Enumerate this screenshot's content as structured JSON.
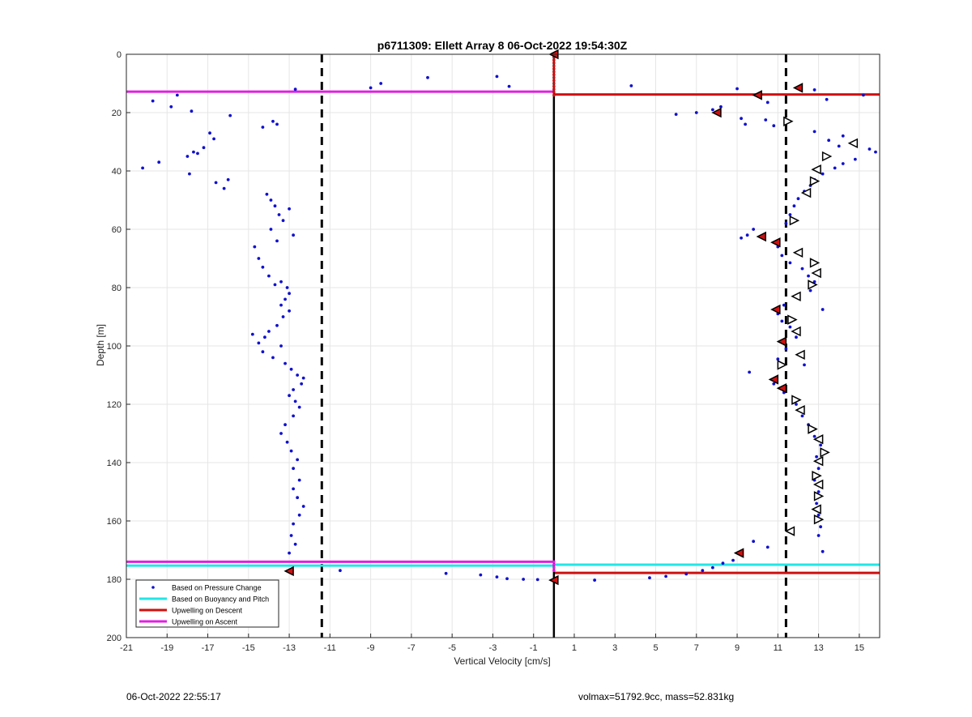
{
  "footer": {
    "timestamp": "06-Oct-2022 22:55:17",
    "summary": "volmax=51792.9cc, mass=52.831kg"
  },
  "chart_data": {
    "type": "scatter",
    "title": "p6711309: Ellett Array 8 06-Oct-2022 19:54:30Z",
    "xlabel": "Vertical Velocity [cm/s]",
    "ylabel": "Depth [m]",
    "xlim": [
      -21,
      16
    ],
    "ylim": [
      0,
      200
    ],
    "y_reversed": true,
    "grid": true,
    "legend_position": "bottom-left",
    "x_ticks": [
      -21,
      -19,
      -17,
      -15,
      -13,
      -11,
      -9,
      -7,
      -5,
      -3,
      -1,
      1,
      3,
      5,
      7,
      9,
      11,
      13,
      15
    ],
    "y_ticks": [
      0,
      20,
      40,
      60,
      80,
      100,
      120,
      140,
      160,
      180,
      200
    ],
    "legend": [
      {
        "label": "Based on Pressure Change",
        "color": "#1010d0",
        "kind": "marker"
      },
      {
        "label": "Based on Buoyancy and Pitch",
        "color": "#22e6e6",
        "kind": "line"
      },
      {
        "label": "Upwelling on Descent",
        "color": "#d01010",
        "kind": "line"
      },
      {
        "label": "Upwelling on Ascent",
        "color": "#e020e0",
        "kind": "line"
      }
    ],
    "colors": {
      "pressure": "#1010d0",
      "buoyancy": "#22e6e6",
      "descent": "#d01010",
      "ascent": "#e020e0",
      "red_marker": "#d01010"
    },
    "dashed_vlines": [
      -11.4,
      11.4
    ],
    "zero_line": 0,
    "upwelling_descent": [
      {
        "x": [
          0,
          16
        ],
        "y": 13.8
      },
      {
        "x": [
          0,
          16
        ],
        "y": 177.8
      }
    ],
    "upwelling_ascent": [
      {
        "x": [
          -21,
          0
        ],
        "y": 12.8
      },
      {
        "x": [
          -21,
          0
        ],
        "y": 174.0
      }
    ],
    "buoyancy_lines": [
      {
        "x": [
          -21,
          0
        ],
        "y": 175.3
      },
      {
        "x": [
          0,
          16
        ],
        "y": 175.0
      }
    ],
    "pressure_points": [
      [
        -20.2,
        39
      ],
      [
        -19.7,
        16
      ],
      [
        -19.4,
        37
      ],
      [
        -18.8,
        18
      ],
      [
        -18.5,
        14
      ],
      [
        -18.0,
        35
      ],
      [
        -17.8,
        19.5
      ],
      [
        -17.9,
        41
      ],
      [
        -17.7,
        33.5
      ],
      [
        -17.5,
        34
      ],
      [
        -17.2,
        32
      ],
      [
        -16.9,
        27
      ],
      [
        -16.7,
        29
      ],
      [
        -16.6,
        44
      ],
      [
        -16.2,
        46
      ],
      [
        -16.0,
        43
      ],
      [
        -15.9,
        21
      ],
      [
        -14.3,
        25
      ],
      [
        -13.8,
        23
      ],
      [
        -13.6,
        24
      ],
      [
        -14.1,
        48
      ],
      [
        -13.9,
        50
      ],
      [
        -13.7,
        52
      ],
      [
        -13.5,
        55
      ],
      [
        -13.3,
        57
      ],
      [
        -13.0,
        53
      ],
      [
        -12.8,
        62
      ],
      [
        -13.9,
        60
      ],
      [
        -13.6,
        64
      ],
      [
        -14.7,
        66
      ],
      [
        -14.5,
        70
      ],
      [
        -14.3,
        73
      ],
      [
        -14.0,
        76
      ],
      [
        -13.7,
        79
      ],
      [
        -13.4,
        78
      ],
      [
        -13.1,
        80
      ],
      [
        -13.0,
        82
      ],
      [
        -13.2,
        84
      ],
      [
        -13.4,
        86
      ],
      [
        -13.0,
        88
      ],
      [
        -13.3,
        90
      ],
      [
        -13.6,
        93
      ],
      [
        -14.0,
        95
      ],
      [
        -14.2,
        97
      ],
      [
        -14.5,
        99
      ],
      [
        -14.8,
        96
      ],
      [
        -14.3,
        102
      ],
      [
        -13.8,
        104
      ],
      [
        -13.4,
        100
      ],
      [
        -13.2,
        106
      ],
      [
        -12.9,
        108
      ],
      [
        -12.6,
        110
      ],
      [
        -12.3,
        111
      ],
      [
        -12.4,
        113
      ],
      [
        -12.8,
        115
      ],
      [
        -13.0,
        117
      ],
      [
        -12.7,
        119
      ],
      [
        -12.5,
        121
      ],
      [
        -12.8,
        124
      ],
      [
        -13.2,
        127
      ],
      [
        -13.4,
        130
      ],
      [
        -13.1,
        133
      ],
      [
        -12.9,
        136
      ],
      [
        -12.6,
        139
      ],
      [
        -12.8,
        142
      ],
      [
        -12.5,
        146
      ],
      [
        -12.8,
        149
      ],
      [
        -12.6,
        152
      ],
      [
        -12.3,
        155
      ],
      [
        -12.5,
        158
      ],
      [
        -12.8,
        161
      ],
      [
        -12.9,
        165
      ],
      [
        -12.7,
        168
      ],
      [
        -13.0,
        171
      ],
      [
        -12.7,
        12.0
      ],
      [
        -8.5,
        10.0
      ],
      [
        -9.0,
        11.5
      ],
      [
        -6.2,
        8.0
      ],
      [
        -2.8,
        7.6
      ],
      [
        -2.2,
        11.0
      ],
      [
        3.8,
        10.8
      ],
      [
        9.0,
        11.8
      ],
      [
        9.9,
        14.0
      ],
      [
        10.5,
        16.5
      ],
      [
        12.8,
        12.2
      ],
      [
        13.4,
        15.5
      ],
      [
        15.2,
        14.0
      ],
      [
        -10.5,
        177.0
      ],
      [
        -5.3,
        178
      ],
      [
        -3.6,
        178.5
      ],
      [
        -2.8,
        179.2
      ],
      [
        -2.3,
        179.8
      ],
      [
        -1.5,
        180.0
      ],
      [
        -0.8,
        180.1
      ],
      [
        2.0,
        180.3
      ],
      [
        4.7,
        179.5
      ],
      [
        5.5,
        179.0
      ],
      [
        6.5,
        178.2
      ],
      [
        7.3,
        177.0
      ],
      [
        7.8,
        176.0
      ],
      [
        8.3,
        174.5
      ],
      [
        8.8,
        173.5
      ],
      [
        9.8,
        167.0
      ],
      [
        10.5,
        169.0
      ],
      [
        6.0,
        20.6
      ],
      [
        7.0,
        20.0
      ],
      [
        7.8,
        19.0
      ],
      [
        8.2,
        18.0
      ],
      [
        9.2,
        22.0
      ],
      [
        9.4,
        24.0
      ],
      [
        10.4,
        22.5
      ],
      [
        10.8,
        24.5
      ],
      [
        12.8,
        26.5
      ],
      [
        13.5,
        29.5
      ],
      [
        14.2,
        28.0
      ],
      [
        14.0,
        31.5
      ],
      [
        15.5,
        32.5
      ],
      [
        15.8,
        33.5
      ],
      [
        14.8,
        36.0
      ],
      [
        14.2,
        37.5
      ],
      [
        13.8,
        39.0
      ],
      [
        13.2,
        41.0
      ],
      [
        12.8,
        43.0
      ],
      [
        12.6,
        45.0
      ],
      [
        12.3,
        47.0
      ],
      [
        12.0,
        49.5
      ],
      [
        11.8,
        52.0
      ],
      [
        11.6,
        55.0
      ],
      [
        11.4,
        58.0
      ],
      [
        9.8,
        60.0
      ],
      [
        9.5,
        62.0
      ],
      [
        9.2,
        63.0
      ],
      [
        11.0,
        66.0
      ],
      [
        11.2,
        69.0
      ],
      [
        11.6,
        71.5
      ],
      [
        12.2,
        73.5
      ],
      [
        12.5,
        76.0
      ],
      [
        12.8,
        78.0
      ],
      [
        12.6,
        81.0
      ],
      [
        13.2,
        87.5
      ],
      [
        11.3,
        86.0
      ],
      [
        11.0,
        89.0
      ],
      [
        11.2,
        91.5
      ],
      [
        11.6,
        93.5
      ],
      [
        11.9,
        97.0
      ],
      [
        11.4,
        101.0
      ],
      [
        11.0,
        104.5
      ],
      [
        12.3,
        106.5
      ],
      [
        9.6,
        109.0
      ],
      [
        10.8,
        113.0
      ],
      [
        11.3,
        116.0
      ],
      [
        11.9,
        120.0
      ],
      [
        12.2,
        124.0
      ],
      [
        12.5,
        127.0
      ],
      [
        12.8,
        131.0
      ],
      [
        13.1,
        134.0
      ],
      [
        12.9,
        138.0
      ],
      [
        13.0,
        142.0
      ],
      [
        12.8,
        146.0
      ],
      [
        13.0,
        150.0
      ],
      [
        12.9,
        154.0
      ],
      [
        13.0,
        158.0
      ],
      [
        13.1,
        162.0
      ],
      [
        13.0,
        165.0
      ],
      [
        13.2,
        170.5
      ]
    ],
    "descent_markers": [
      [
        0,
        0
      ],
      [
        12.0,
        11.5
      ],
      [
        10.0,
        14.0
      ],
      [
        8.0,
        20.0
      ],
      [
        10.2,
        62.5
      ],
      [
        10.9,
        64.5
      ],
      [
        10.9,
        87.5
      ],
      [
        11.2,
        98.5
      ],
      [
        10.8,
        111.5
      ],
      [
        11.2,
        114.5
      ],
      [
        9.1,
        171.0
      ],
      [
        -13.0,
        177.2
      ],
      [
        0,
        180.3
      ]
    ],
    "ascent_markers": [
      [
        11.5,
        23.0
      ],
      [
        14.7,
        30.5
      ],
      [
        13.4,
        35.0
      ],
      [
        12.9,
        39.5
      ],
      [
        12.8,
        43.5
      ],
      [
        12.4,
        47.5
      ],
      [
        11.8,
        57.0
      ],
      [
        12.0,
        68.0
      ],
      [
        12.8,
        71.5
      ],
      [
        12.9,
        75.0
      ],
      [
        12.7,
        79.0
      ],
      [
        11.9,
        83.0
      ],
      [
        11.7,
        91.0
      ],
      [
        11.9,
        95.0
      ],
      [
        11.2,
        106.5
      ],
      [
        12.1,
        103.0
      ],
      [
        11.9,
        118.5
      ],
      [
        12.1,
        122.0
      ],
      [
        12.7,
        128.5
      ],
      [
        13.0,
        132.0
      ],
      [
        13.3,
        136.5
      ],
      [
        13.0,
        139.5
      ],
      [
        12.9,
        144.5
      ],
      [
        13.0,
        147.5
      ],
      [
        13.0,
        151.5
      ],
      [
        12.9,
        156.0
      ],
      [
        13.0,
        159.5
      ],
      [
        11.6,
        163.5
      ]
    ],
    "axis_markers": [
      0,
      1,
      2,
      3,
      4,
      5,
      6,
      7,
      8,
      9,
      10,
      11,
      12,
      13,
      14,
      174,
      175,
      176,
      177
    ]
  }
}
